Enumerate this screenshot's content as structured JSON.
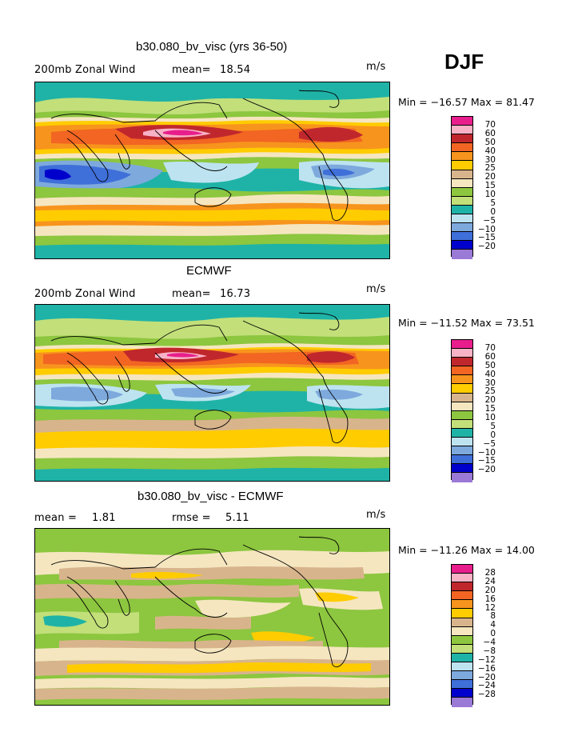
{
  "season": "DJF",
  "palette_main": [
    "#e81e8c",
    "#f7b2c6",
    "#c0272d",
    "#f26522",
    "#f7941d",
    "#ffcc00",
    "#d8b48c",
    "#f5e6c0",
    "#8dc63f",
    "#c2df7a",
    "#1fb3a7",
    "#bde3f0",
    "#7da9dd",
    "#3f6fd9",
    "#0000cc",
    "#9b79d6"
  ],
  "palette_diff": [
    "#e81e8c",
    "#f7b2c6",
    "#c0272d",
    "#f26522",
    "#f7941d",
    "#ffcc00",
    "#d8b48c",
    "#f5e6c0",
    "#8dc63f",
    "#c2df7a",
    "#1fb3a7",
    "#bde3f0",
    "#7da9dd",
    "#3f6fd9",
    "#0000cc",
    "#9b79d6"
  ],
  "panels": [
    {
      "title": "b30.080_bv_visc (yrs 36-50)",
      "left_label": "200mb Zonal Wind",
      "stat_label": "mean=",
      "stat_value": "18.54",
      "rmse_label": "",
      "rmse_value": "",
      "units": "m/s",
      "minmax": "Min = −16.57 Max =  81.47",
      "ticks": [
        "70",
        "60",
        "50",
        "40",
        "30",
        "25",
        "20",
        "15",
        "10",
        "5",
        "0",
        "−5",
        "−10",
        "−15",
        "−20"
      ]
    },
    {
      "title": "ECMWF",
      "left_label": "200mb Zonal Wind",
      "stat_label": "mean=",
      "stat_value": "16.73",
      "rmse_label": "",
      "rmse_value": "",
      "units": "m/s",
      "minmax": "Min = −11.52 Max =  73.51",
      "ticks": [
        "70",
        "60",
        "50",
        "40",
        "30",
        "25",
        "20",
        "15",
        "10",
        "5",
        "0",
        "−5",
        "−10",
        "−15",
        "−20"
      ]
    },
    {
      "title": "b30.080_bv_visc - ECMWF",
      "left_label": "mean =",
      "stat_label": "",
      "stat_value": "1.81",
      "rmse_label": "rmse =",
      "rmse_value": "5.11",
      "units": "m/s",
      "minmax": "Min = −11.26 Max =  14.00",
      "ticks": [
        "28",
        "24",
        "20",
        "16",
        "12",
        "8",
        "4",
        "0",
        "−4",
        "−8",
        "−12",
        "−16",
        "−20",
        "−24",
        "−28"
      ]
    }
  ]
}
